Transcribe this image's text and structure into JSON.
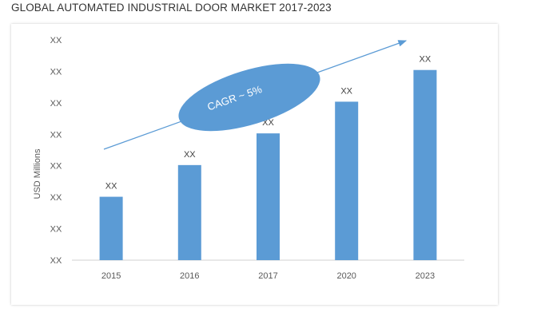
{
  "page": {
    "title": "GLOBAL AUTOMATED INDUSTRIAL DOOR MARKET 2017-2023"
  },
  "chart_data": {
    "type": "bar",
    "categories": [
      "2015",
      "2016",
      "2017",
      "2020",
      "2023"
    ],
    "values": [
      20,
      30,
      40,
      50,
      60
    ],
    "data_labels": [
      "XX",
      "XX",
      "XX",
      "XX",
      "XX"
    ],
    "ylabel": "USD Millions",
    "y_tick_labels": [
      "XX",
      "XX",
      "XX",
      "XX",
      "XX",
      "XX",
      "XX",
      "XX"
    ],
    "ylim": [
      0,
      70
    ],
    "grid": false,
    "legend": "none",
    "bar_color": "#5b9bd5",
    "annotation": {
      "text": "CAGR ~ 5%",
      "shape": "ellipse",
      "color": "#5b9bd5",
      "arrow": "trend arrow rising from 2015 to 2023"
    }
  }
}
